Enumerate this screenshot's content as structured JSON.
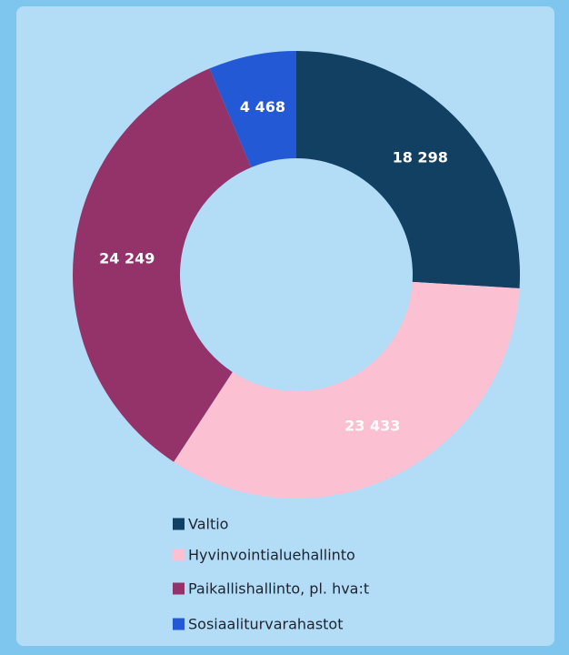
{
  "chart_data": {
    "type": "donut",
    "categories": [
      "Valtio",
      "Hyvinvointialuehallinto",
      "Paikallishallinto, pl. hva:t",
      "Sosiaaliturvarahastot"
    ],
    "values": [
      18298,
      23433,
      24249,
      4468
    ],
    "value_labels": [
      "18 298",
      "23 433",
      "24 249",
      "4 468"
    ],
    "colors": [
      "#124062",
      "#fcc0d3",
      "#93336a",
      "#2459d6"
    ]
  }
}
